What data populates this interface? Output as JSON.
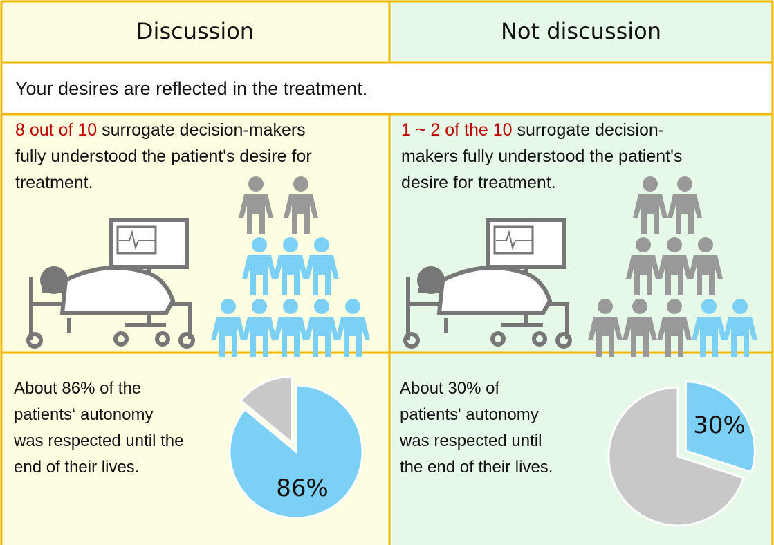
{
  "header": {
    "left": "Discussion",
    "right": "Not discussion"
  },
  "banner": "Your desires are reflected in the treatment.",
  "understanding": {
    "left": {
      "highlight": "8 out of 10",
      "lines": [
        " surrogate decision-makers",
        "fully understood the patient's desire for",
        "treatment."
      ]
    },
    "right": {
      "highlight": "1 ~ 2 of the 10",
      "lines": [
        " surrogate decision-",
        "makers fully understood the patient's",
        "desire for treatment."
      ]
    }
  },
  "autonomy": {
    "left": {
      "lines": [
        "About 86% of the",
        " patients‘ autonomy",
        "was respected until the",
        " end of their lives."
      ],
      "pie": {
        "value": 86,
        "label": "86%"
      }
    },
    "right": {
      "lines": [
        "About 30% of",
        "patients' autonomy",
        "was respected until",
        "the end of their lives."
      ],
      "pie": {
        "value": 30,
        "label": "30%"
      }
    }
  }
}
